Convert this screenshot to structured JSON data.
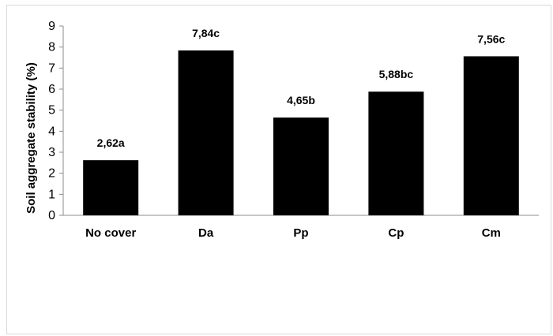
{
  "chart_data": {
    "type": "bar",
    "categories": [
      "No cover",
      "Da",
      "Pp",
      "Cp",
      "Cm"
    ],
    "values": [
      2.62,
      7.84,
      4.65,
      5.88,
      7.56
    ],
    "data_labels": [
      "2,62a",
      "7,84c",
      "4,65b",
      "5,88bc",
      "7,56c"
    ],
    "ylabel": "Soil aggregate stability (%)",
    "xlabel": "",
    "ylim": [
      0,
      9
    ],
    "yticks": [
      "0",
      "1",
      "2",
      "3",
      "4",
      "5",
      "6",
      "7",
      "8",
      "9"
    ],
    "grid": false,
    "bar_color": "#000000"
  }
}
